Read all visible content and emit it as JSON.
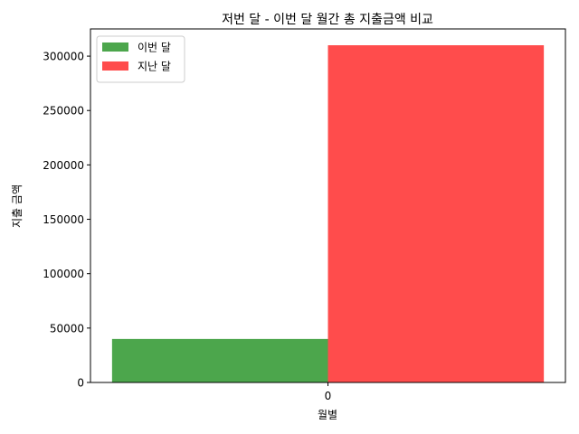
{
  "chart_data": {
    "type": "bar",
    "title": "저번 달 - 이번 달 월간 총 지출금액 비교",
    "xlabel": "월별",
    "ylabel": "지출 금액",
    "categories": [
      "0"
    ],
    "series": [
      {
        "name": "이번 달",
        "values": [
          40000
        ],
        "color": "#4ca64c"
      },
      {
        "name": "지난 달",
        "values": [
          310000
        ],
        "color": "#ff4c4c"
      }
    ],
    "ylim": [
      0,
      325000
    ],
    "yticks": [
      0,
      50000,
      100000,
      150000,
      200000,
      250000,
      300000
    ],
    "ytick_labels": [
      "0",
      "50000",
      "100000",
      "150000",
      "200000",
      "250000",
      "300000"
    ],
    "grid": false,
    "legend_position": "top-left"
  }
}
